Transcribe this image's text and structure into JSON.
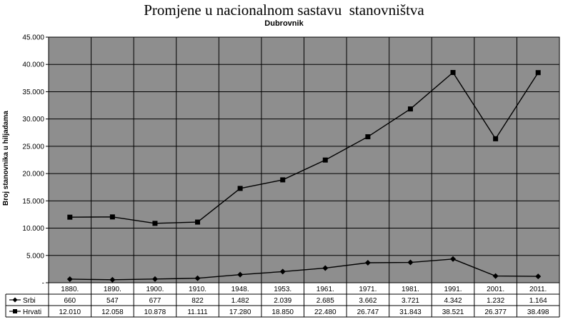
{
  "chart_data": {
    "type": "line",
    "title": "Promjene u nacionalnom sastavu  stanovništva",
    "subtitle": "Dubrovnik",
    "ylabel": "Broj stanovnika u hiljadama",
    "ylim": [
      0,
      45000
    ],
    "yticks": [
      "-",
      "5.000",
      "10.000",
      "15.000",
      "20.000",
      "25.000",
      "30.000",
      "35.000",
      "40.000",
      "45.000"
    ],
    "ytick_values": [
      0,
      5000,
      10000,
      15000,
      20000,
      25000,
      30000,
      35000,
      40000,
      45000
    ],
    "categories": [
      "1880.",
      "1890.",
      "1900.",
      "1910.",
      "1948.",
      "1953.",
      "1961.",
      "1971.",
      "1981.",
      "1991.",
      "2001.",
      "2011."
    ],
    "grid": true,
    "legend": "data table below plot",
    "series": [
      {
        "name": "Srbi",
        "marker": "diamond",
        "values": [
          660,
          547,
          677,
          822,
          1482,
          2039,
          2685,
          3662,
          3721,
          4342,
          1232,
          1164
        ],
        "labels": [
          "660",
          "547",
          "677",
          "822",
          "1.482",
          "2.039",
          "2.685",
          "3.662",
          "3.721",
          "4.342",
          "1.232",
          "1.164"
        ]
      },
      {
        "name": "Hrvati",
        "marker": "square",
        "values": [
          12010,
          12058,
          10878,
          11111,
          17280,
          18850,
          22480,
          26747,
          31843,
          38521,
          26377,
          38498
        ],
        "labels": [
          "12.010",
          "12.058",
          "10.878",
          "11.111",
          "17.280",
          "18.850",
          "22.480",
          "26.747",
          "31.843",
          "38.521",
          "26.377",
          "38.498"
        ]
      }
    ],
    "colors": {
      "plot_bg": "#8e8e8e",
      "line": "#000000",
      "grid": "#000000"
    }
  }
}
